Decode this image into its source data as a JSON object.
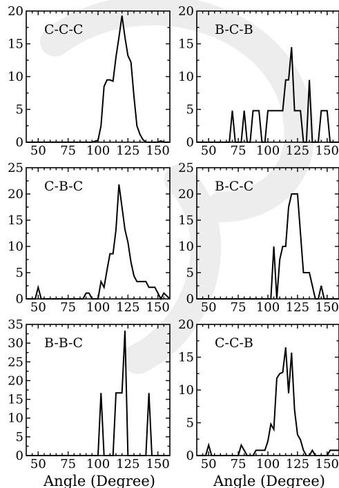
{
  "chart_data": [
    {
      "type": "line",
      "label": "C-C-C",
      "xlim": [
        40,
        160
      ],
      "ylim": [
        0,
        20
      ],
      "xticks": [
        50,
        75,
        100,
        125,
        150
      ],
      "yticks": [
        0,
        5,
        10,
        15,
        20
      ],
      "xlabel": "",
      "x": [
        40,
        95,
        100,
        102.5,
        105,
        107.5,
        110,
        112.5,
        115,
        117.5,
        120,
        122.5,
        125,
        127.5,
        130,
        132.5,
        135,
        137.5,
        140,
        145,
        150,
        152.5,
        155,
        160
      ],
      "y": [
        0,
        0,
        0.3,
        2.5,
        8.5,
        9.5,
        9.5,
        9.3,
        13,
        16,
        19.3,
        16,
        13.2,
        12.2,
        7,
        2.5,
        1.2,
        0.4,
        0,
        0,
        0,
        0.2,
        0,
        0
      ]
    },
    {
      "type": "line",
      "label": "B-C-B",
      "xlim": [
        40,
        160
      ],
      "ylim": [
        0,
        20
      ],
      "xticks": [
        50,
        75,
        100,
        125,
        150
      ],
      "yticks": [
        0,
        5,
        10,
        15,
        20
      ],
      "xlabel": "",
      "x": [
        40,
        65,
        67.5,
        70,
        72.5,
        75,
        77.5,
        80,
        82.5,
        85,
        87.5,
        90,
        92.5,
        95,
        97.5,
        100,
        102.5,
        105,
        107.5,
        110,
        112.5,
        115,
        117.5,
        120,
        122.5,
        125,
        127.5,
        130,
        132.5,
        135,
        137.5,
        140,
        142.5,
        145,
        147.5,
        150,
        152.5,
        155,
        160
      ],
      "y": [
        0,
        0,
        0,
        4.8,
        0,
        0,
        0,
        4.8,
        0,
        0,
        4.8,
        4.8,
        4.8,
        0,
        0,
        4.8,
        4.8,
        4.8,
        4.8,
        4.8,
        4.8,
        9.5,
        9.5,
        14.5,
        4.8,
        4.8,
        4.8,
        0,
        0,
        9.5,
        0,
        0,
        0,
        4.8,
        4.8,
        4.8,
        0,
        0,
        0
      ]
    },
    {
      "type": "line",
      "label": "C-B-C",
      "xlim": [
        40,
        160
      ],
      "ylim": [
        0,
        25
      ],
      "xticks": [
        50,
        75,
        100,
        125,
        150
      ],
      "yticks": [
        0,
        5,
        10,
        15,
        20,
        25
      ],
      "xlabel": "",
      "x": [
        40,
        45,
        47.5,
        50,
        52.5,
        85,
        87.5,
        90,
        92.5,
        95,
        97.5,
        100,
        102.5,
        105,
        107.5,
        110,
        112.5,
        115,
        117.5,
        120,
        122.5,
        125,
        127.5,
        130,
        132.5,
        135,
        137.5,
        140,
        142.5,
        145,
        147.5,
        150,
        152.5,
        155,
        160
      ],
      "y": [
        0,
        0,
        0,
        2.2,
        0,
        0,
        0,
        1.1,
        1.1,
        0,
        0,
        0,
        3.3,
        2.2,
        5.5,
        8.6,
        8.6,
        13.2,
        21.8,
        17.5,
        13.2,
        10.8,
        7,
        4.4,
        3.3,
        3.3,
        3.3,
        3.3,
        2.2,
        2.2,
        2.2,
        1.1,
        0,
        1.1,
        0
      ]
    },
    {
      "type": "line",
      "label": "B-C-C",
      "xlim": [
        40,
        160
      ],
      "ylim": [
        0,
        25
      ],
      "xticks": [
        50,
        75,
        100,
        125,
        150
      ],
      "yticks": [
        0,
        5,
        10,
        15,
        20,
        25
      ],
      "xlabel": "",
      "x": [
        40,
        102.5,
        105,
        107.5,
        110,
        112.5,
        115,
        117.5,
        120,
        122.5,
        125,
        127.5,
        130,
        132.5,
        135,
        137.5,
        140,
        142.5,
        145,
        147.5,
        150,
        160
      ],
      "y": [
        0,
        0,
        10,
        0,
        7.5,
        10,
        10,
        17.5,
        20,
        20,
        20,
        12.5,
        5,
        5,
        5,
        2.5,
        0,
        0,
        2.5,
        0,
        0,
        0
      ]
    },
    {
      "type": "line",
      "label": "B-B-C",
      "xlim": [
        40,
        160
      ],
      "ylim": [
        0,
        35
      ],
      "xticks": [
        50,
        75,
        100,
        125,
        150
      ],
      "yticks": [
        0,
        5,
        10,
        15,
        20,
        25,
        30,
        35
      ],
      "xlabel": "Angle (Degree)",
      "x": [
        40,
        100,
        102.5,
        105,
        107.5,
        110,
        112.5,
        115,
        117.5,
        120,
        122.5,
        125,
        127.5,
        130,
        132.5,
        135,
        137.5,
        140,
        142.5,
        145,
        147.5,
        150,
        160
      ],
      "y": [
        0,
        0,
        16.7,
        0,
        0,
        0,
        0,
        16.7,
        16.7,
        16.7,
        33.3,
        0,
        0,
        0,
        0,
        0,
        0,
        0,
        16.7,
        0,
        0,
        0,
        0
      ]
    },
    {
      "type": "line",
      "label": "C-C-B",
      "xlim": [
        40,
        160
      ],
      "ylim": [
        0,
        20
      ],
      "xticks": [
        50,
        75,
        100,
        125,
        150
      ],
      "yticks": [
        0,
        5,
        10,
        15,
        20
      ],
      "xlabel": "Angle (Degree)",
      "x": [
        40,
        47.5,
        50,
        52.5,
        55,
        72.5,
        75,
        77.5,
        80,
        82.5,
        85,
        87.5,
        90,
        92.5,
        95,
        97.5,
        100,
        102.5,
        105,
        107.5,
        110,
        112.5,
        115,
        117.5,
        120,
        122.5,
        125,
        127.5,
        130,
        132.5,
        135,
        137.5,
        140,
        142.5,
        145,
        147.5,
        150,
        152.5,
        155,
        160
      ],
      "y": [
        0,
        0,
        1.6,
        0,
        0,
        0,
        0,
        1.6,
        0.8,
        0,
        0,
        0,
        0.8,
        0.8,
        0.8,
        0.8,
        2.2,
        4.8,
        4,
        11.8,
        12.5,
        12.7,
        16.5,
        9.5,
        15.7,
        7,
        3.2,
        2.4,
        0.8,
        0,
        0,
        0.8,
        0,
        0,
        0,
        0,
        0,
        0.8,
        0.8,
        0.8
      ]
    }
  ]
}
